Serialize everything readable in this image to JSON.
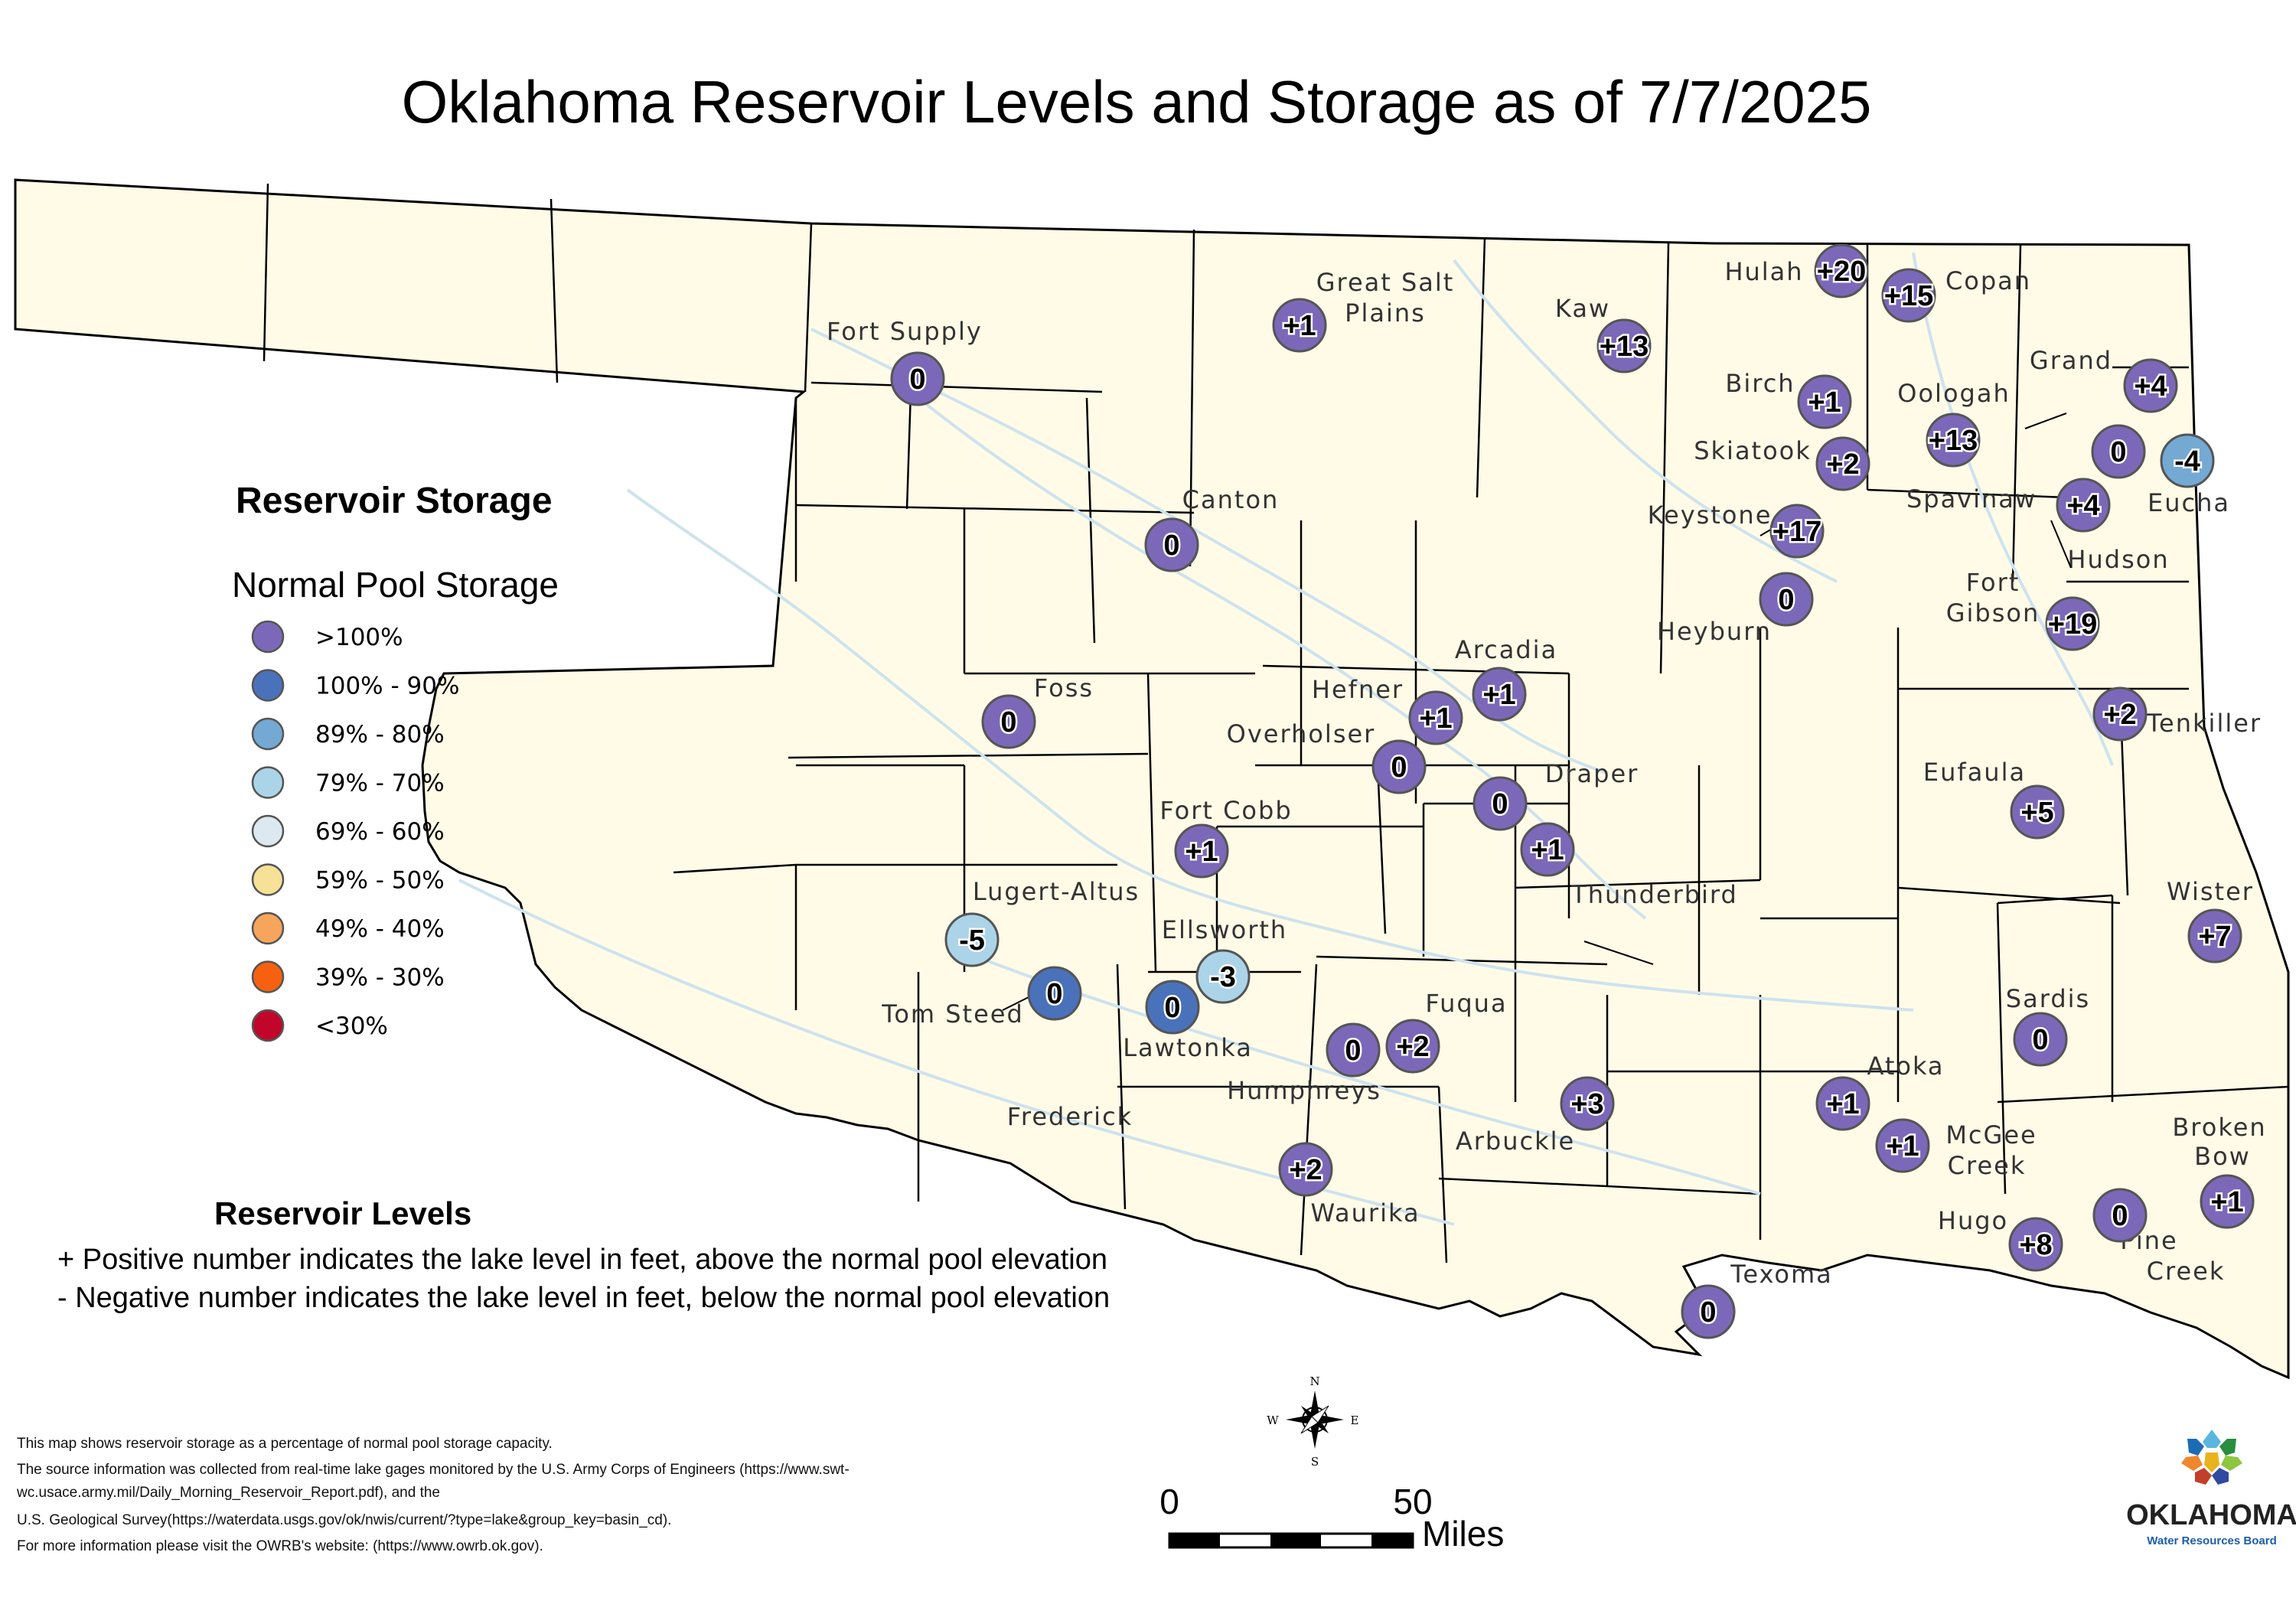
{
  "title": "Oklahoma Reservoir Levels and Storage as of  7/7/2025",
  "storage_classes": {
    "gt100": "#7c68b8",
    "c100_90": "#4a72bb",
    "c89_80": "#74a9d3",
    "c79_70": "#acd4e8",
    "c69_60": "#dde9f0",
    "c59_50": "#f7e196",
    "c49_40": "#f6a55c",
    "c39_30": "#f5610f",
    "lt30": "#c2062b"
  },
  "map_colors": {
    "land": "#fffbe7",
    "county_line": "#000000",
    "river": "#cde3ee"
  },
  "legend": {
    "title": "Reservoir Storage",
    "subtitle": "Normal Pool Storage",
    "items": [
      {
        "label": ">100%",
        "color": "#7c68b8"
      },
      {
        "label": "100% - 90%",
        "color": "#4a72bb"
      },
      {
        "label": "89% - 80%",
        "color": "#74a9d3"
      },
      {
        "label": "79% - 70%",
        "color": "#acd4e8"
      },
      {
        "label": "69% - 60%",
        "color": "#dde9f0"
      },
      {
        "label": "59% - 50%",
        "color": "#f7e196"
      },
      {
        "label": "49% - 40%",
        "color": "#f6a55c"
      },
      {
        "label": "39% - 30%",
        "color": "#f5610f"
      },
      {
        "label": "<30%",
        "color": "#c2062b"
      }
    ]
  },
  "levels_note": {
    "title": "Reservoir Levels",
    "line1": "+ Positive number indicates the lake level in feet, above the normal pool elevation",
    "line2": "- Negative number indicates the lake level in feet, below the normal pool elevation"
  },
  "source": {
    "line1": "This map shows reservoir storage as a percentage of normal pool storage capacity.",
    "line2": "The source information was collected from real-time lake gages monitored by the U.S. Army Corps of Engineers (https://www.swt-",
    "line3": "wc.usace.army.mil/Daily_Morning_Reservoir_Report.pdf), and the",
    "line4": "U.S. Geological Survey(https://waterdata.usgs.gov/ok/nwis/current/?type=lake&group_key=basin_cd).",
    "line5": "For more information please visit the OWRB's website: (https://www.owrb.ok.gov)."
  },
  "scale": {
    "zero": "0",
    "fifty": "50",
    "unit": "Miles"
  },
  "compass": {
    "n": "N",
    "s": "S",
    "e": "E",
    "w": "W"
  },
  "logo": {
    "name": "OKLAHOMA",
    "sub": "Water Resources Board"
  },
  "reservoirs": [
    {
      "name": "Fort Supply",
      "level": "0",
      "storage": "gt100"
    },
    {
      "name": "Great Salt Plains",
      "level": "+1",
      "storage": "gt100"
    },
    {
      "name": "Kaw",
      "level": "+13",
      "storage": "gt100"
    },
    {
      "name": "Hulah",
      "level": "+20",
      "storage": "gt100"
    },
    {
      "name": "Copan",
      "level": "+15",
      "storage": "gt100"
    },
    {
      "name": "Birch",
      "level": "+1",
      "storage": "gt100"
    },
    {
      "name": "Oologah",
      "level": "+13",
      "storage": "gt100"
    },
    {
      "name": "Grand",
      "level": "+4",
      "storage": "gt100"
    },
    {
      "name": "Skiatook",
      "level": "+2",
      "storage": "gt100"
    },
    {
      "name": "Spavinaw",
      "level": "0",
      "storage": "gt100"
    },
    {
      "name": "Eucha",
      "level": "-4",
      "storage": "c89_80"
    },
    {
      "name": "Hudson",
      "level": "+4",
      "storage": "gt100"
    },
    {
      "name": "Keystone",
      "level": "+17",
      "storage": "gt100"
    },
    {
      "name": "Heyburn",
      "level": "0",
      "storage": "gt100"
    },
    {
      "name": "Fort Gibson",
      "level": "+19",
      "storage": "gt100"
    },
    {
      "name": "Canton",
      "level": "0",
      "storage": "gt100"
    },
    {
      "name": "Foss",
      "level": "0",
      "storage": "gt100"
    },
    {
      "name": "Hefner",
      "level": "+1",
      "storage": "gt100"
    },
    {
      "name": "Arcadia",
      "level": "+1",
      "storage": "gt100"
    },
    {
      "name": "Overholser",
      "level": "0",
      "storage": "gt100"
    },
    {
      "name": "Tenkiller",
      "level": "+2",
      "storage": "gt100"
    },
    {
      "name": "Draper",
      "level": "0",
      "storage": "gt100"
    },
    {
      "name": "Thunderbird",
      "level": "+1",
      "storage": "gt100"
    },
    {
      "name": "Eufaula",
      "level": "+5",
      "storage": "gt100"
    },
    {
      "name": "Fort Cobb",
      "level": "+1",
      "storage": "gt100"
    },
    {
      "name": "Lugert-Altus",
      "level": "-5",
      "storage": "c79_70"
    },
    {
      "name": "Tom Steed",
      "level": "0",
      "storage": "c100_90"
    },
    {
      "name": "Ellsworth",
      "level": "-3",
      "storage": "c79_70"
    },
    {
      "name": "Lawtonka",
      "level": "0",
      "storage": "c100_90"
    },
    {
      "name": "Wister",
      "level": "+7",
      "storage": "gt100"
    },
    {
      "name": "Fuqua",
      "level": "+2",
      "storage": "gt100"
    },
    {
      "name": "Humphreys",
      "level": "0",
      "storage": "gt100"
    },
    {
      "name": "Sardis",
      "level": "0",
      "storage": "gt100"
    },
    {
      "name": "Arbuckle",
      "level": "+3",
      "storage": "gt100"
    },
    {
      "name": "Atoka",
      "level": "+1",
      "storage": "gt100"
    },
    {
      "name": "McGee Creek",
      "level": "+1",
      "storage": "gt100"
    },
    {
      "name": "Waurika",
      "level": "+2",
      "storage": "gt100"
    },
    {
      "name": "Hugo",
      "level": "+8",
      "storage": "gt100"
    },
    {
      "name": "Pine Creek",
      "level": "0",
      "storage": "gt100"
    },
    {
      "name": "Broken Bow",
      "level": "+1",
      "storage": "gt100"
    },
    {
      "name": "Texoma",
      "level": "0",
      "storage": "gt100"
    }
  ],
  "extra_labels": [
    "Frederick"
  ]
}
